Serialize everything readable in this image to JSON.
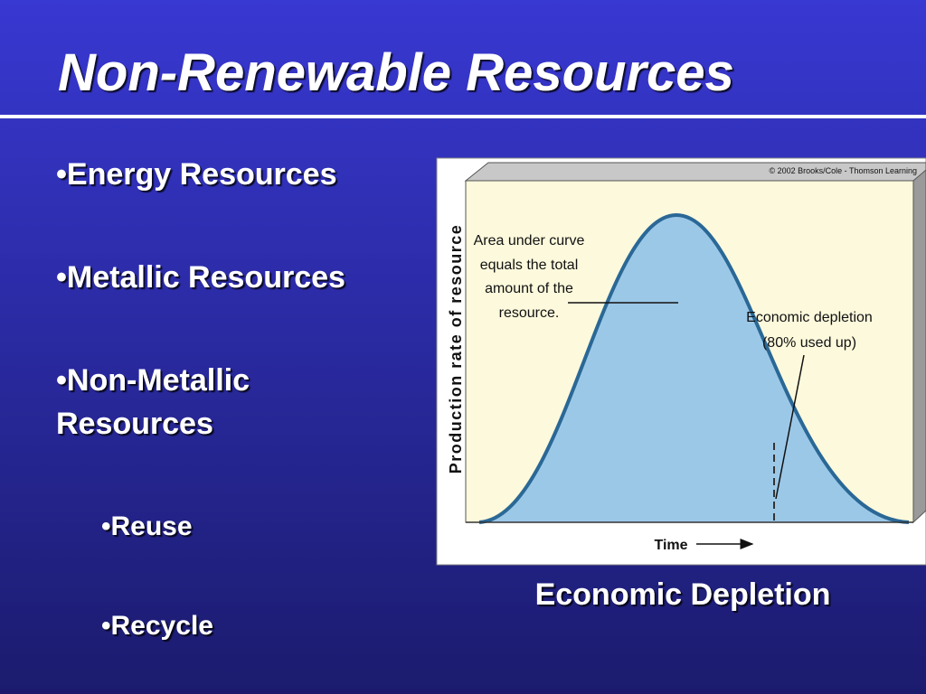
{
  "title": "Non-Renewable Resources",
  "bullets": [
    "•Energy Resources",
    "•Metallic Resources",
    [
      "•Non-Metallic",
      "Resources"
    ]
  ],
  "sub_bullets": [
    "•Reuse",
    "•Recycle"
  ],
  "figure": {
    "copyright": "© 2002 Brooks/Cole - Thomson Learning",
    "y_label": "Production rate of resource",
    "x_label": "Time",
    "area_note": [
      "Area under curve",
      "equals the total",
      "amount of the",
      "resource."
    ],
    "depletion_note": [
      "Economic depletion",
      "(80% used up)"
    ],
    "caption": "Economic Depletion"
  }
}
